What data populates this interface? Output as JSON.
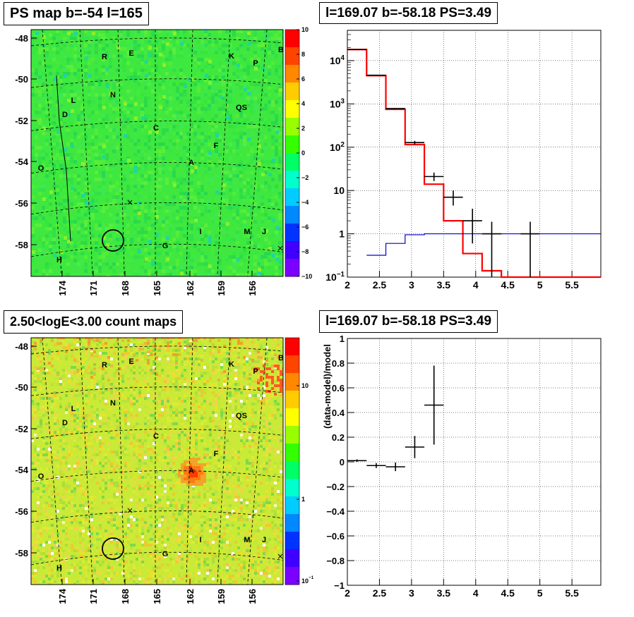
{
  "panels": {
    "top_left_title": "PS map b=-54 l=165",
    "top_right_title": "l=169.07 b=-58.18 PS=3.49",
    "bottom_left_title": "2.50<logE<3.00 count maps",
    "bottom_right_title": "l=169.07 b=-58.18 PS=3.49"
  },
  "chart_data": [
    {
      "type": "heatmap",
      "title": "PS map b=-54 l=165",
      "y_ticks": [
        "-48",
        "-50",
        "-52",
        "-54",
        "-56",
        "-58"
      ],
      "x_ticks": [
        "174",
        "171",
        "168",
        "165",
        "162",
        "159",
        "156"
      ],
      "colorbar": {
        "ticks": [
          "10",
          "8",
          "6",
          "4",
          "2",
          "0",
          "−2",
          "−4",
          "−6",
          "−8",
          "−10"
        ],
        "range": [
          -10,
          10
        ],
        "colors": [
          "#7a00ff",
          "#3f00ff",
          "#0033ff",
          "#0088ff",
          "#00ccff",
          "#00ffcc",
          "#00ff66",
          "#33ff00",
          "#99ff00",
          "#ffff00",
          "#ffcc00",
          "#ff8800",
          "#ff4400",
          "#ff0000"
        ]
      },
      "background_color": "#3fe83f",
      "sources": [
        "R",
        "E",
        "K",
        "P",
        "B",
        "N",
        "L",
        "D",
        "QS",
        "C",
        "F",
        "A",
        "O",
        "I",
        "M",
        "J",
        "G",
        "H"
      ]
    },
    {
      "type": "line",
      "title": "l=169.07 b=-58.18 PS=3.49",
      "x_ticks": [
        "2",
        "2.5",
        "3",
        "3.5",
        "4",
        "4.5",
        "5",
        "5.5"
      ],
      "xlim": [
        2,
        5.95
      ],
      "y_scale": "log",
      "y_ticks": [
        "10^4",
        "10^3",
        "10^2",
        "10",
        "1",
        "10^-1"
      ],
      "ylim": [
        0.1,
        50000
      ],
      "grid": true,
      "series": [
        {
          "color": "#ff0000",
          "bins": [
            [
              2.0,
              2.3,
              18000
            ],
            [
              2.3,
              2.6,
              4500
            ],
            [
              2.6,
              2.9,
              750
            ],
            [
              2.9,
              3.2,
              115
            ],
            [
              3.2,
              3.5,
              14
            ],
            [
              3.5,
              3.8,
              2.0
            ],
            [
              3.8,
              4.1,
              0.35
            ],
            [
              4.1,
              4.4,
              0.14
            ],
            [
              4.4,
              5.95,
              0.1
            ]
          ]
        },
        {
          "color": "#0000cc",
          "bins": [
            [
              2.3,
              2.6,
              0.32
            ],
            [
              2.6,
              2.9,
              0.6
            ],
            [
              2.9,
              3.2,
              0.95
            ],
            [
              3.2,
              5.95,
              1.0
            ]
          ]
        },
        {
          "color": "#000000",
          "points": [
            {
              "x": 2.15,
              "y": 18000,
              "xerr": 0.15,
              "ylo": 18000,
              "yhi": 18000
            },
            {
              "x": 2.45,
              "y": 4600,
              "xerr": 0.15,
              "ylo": 4600,
              "yhi": 4600
            },
            {
              "x": 2.75,
              "y": 780,
              "xerr": 0.15,
              "ylo": 760,
              "yhi": 800
            },
            {
              "x": 3.05,
              "y": 128,
              "xerr": 0.15,
              "ylo": 116,
              "yhi": 140
            },
            {
              "x": 3.35,
              "y": 21,
              "xerr": 0.15,
              "ylo": 16.5,
              "yhi": 26
            },
            {
              "x": 3.65,
              "y": 7,
              "xerr": 0.15,
              "ylo": 4.5,
              "yhi": 10
            },
            {
              "x": 3.95,
              "y": 2,
              "xerr": 0.15,
              "ylo": 0.6,
              "yhi": 3.8
            },
            {
              "x": 4.25,
              "y": 1,
              "xerr": 0.15,
              "ylo": 0.1,
              "yhi": 1.9
            },
            {
              "x": 4.85,
              "y": 1,
              "xerr": 0.15,
              "ylo": 0.1,
              "yhi": 1.9
            }
          ]
        }
      ]
    },
    {
      "type": "heatmap",
      "title": "2.50<logE<3.00 count maps",
      "y_ticks": [
        "-48",
        "-50",
        "-52",
        "-54",
        "-56",
        "-58"
      ],
      "x_ticks": [
        "174",
        "171",
        "168",
        "165",
        "162",
        "159",
        "156"
      ],
      "colorbar": {
        "ticks": [
          "10",
          "1",
          "10^-1"
        ],
        "scale": "log",
        "colors": [
          "#7a00ff",
          "#3f00ff",
          "#0033ff",
          "#0088ff",
          "#00ccff",
          "#00ffcc",
          "#00ff66",
          "#33ff00",
          "#99ff00",
          "#ffff00",
          "#ffcc00",
          "#ff8800",
          "#ff4400",
          "#ff0000"
        ]
      },
      "background_color": "#c9ea36",
      "sources": [
        "R",
        "E",
        "K",
        "P",
        "B",
        "N",
        "L",
        "D",
        "QS",
        "C",
        "F",
        "A",
        "O",
        "I",
        "M",
        "J",
        "G",
        "H"
      ]
    },
    {
      "type": "scatter",
      "title": "l=169.07 b=-58.18 PS=3.49",
      "ylabel": "(data-model)/model",
      "x_ticks": [
        "2",
        "2.5",
        "3",
        "3.5",
        "4",
        "4.5",
        "5",
        "5.5"
      ],
      "xlim": [
        2,
        5.95
      ],
      "y_ticks": [
        "1",
        "0.8",
        "0.6",
        "0.4",
        "0.2",
        "0",
        "−0.2",
        "−0.4",
        "−0.6",
        "−0.8",
        "−1"
      ],
      "ylim": [
        -1,
        1
      ],
      "grid": true,
      "points": [
        {
          "x": 2.15,
          "y": 0.01,
          "xerr": 0.15,
          "yerr": 0.01
        },
        {
          "x": 2.45,
          "y": -0.03,
          "xerr": 0.15,
          "yerr": 0.02
        },
        {
          "x": 2.75,
          "y": -0.04,
          "xerr": 0.15,
          "yerr": 0.035
        },
        {
          "x": 3.05,
          "y": 0.12,
          "xerr": 0.15,
          "yerr": 0.09
        },
        {
          "x": 3.35,
          "y": 0.46,
          "xerr": 0.15,
          "yerr": 0.32
        }
      ]
    }
  ]
}
